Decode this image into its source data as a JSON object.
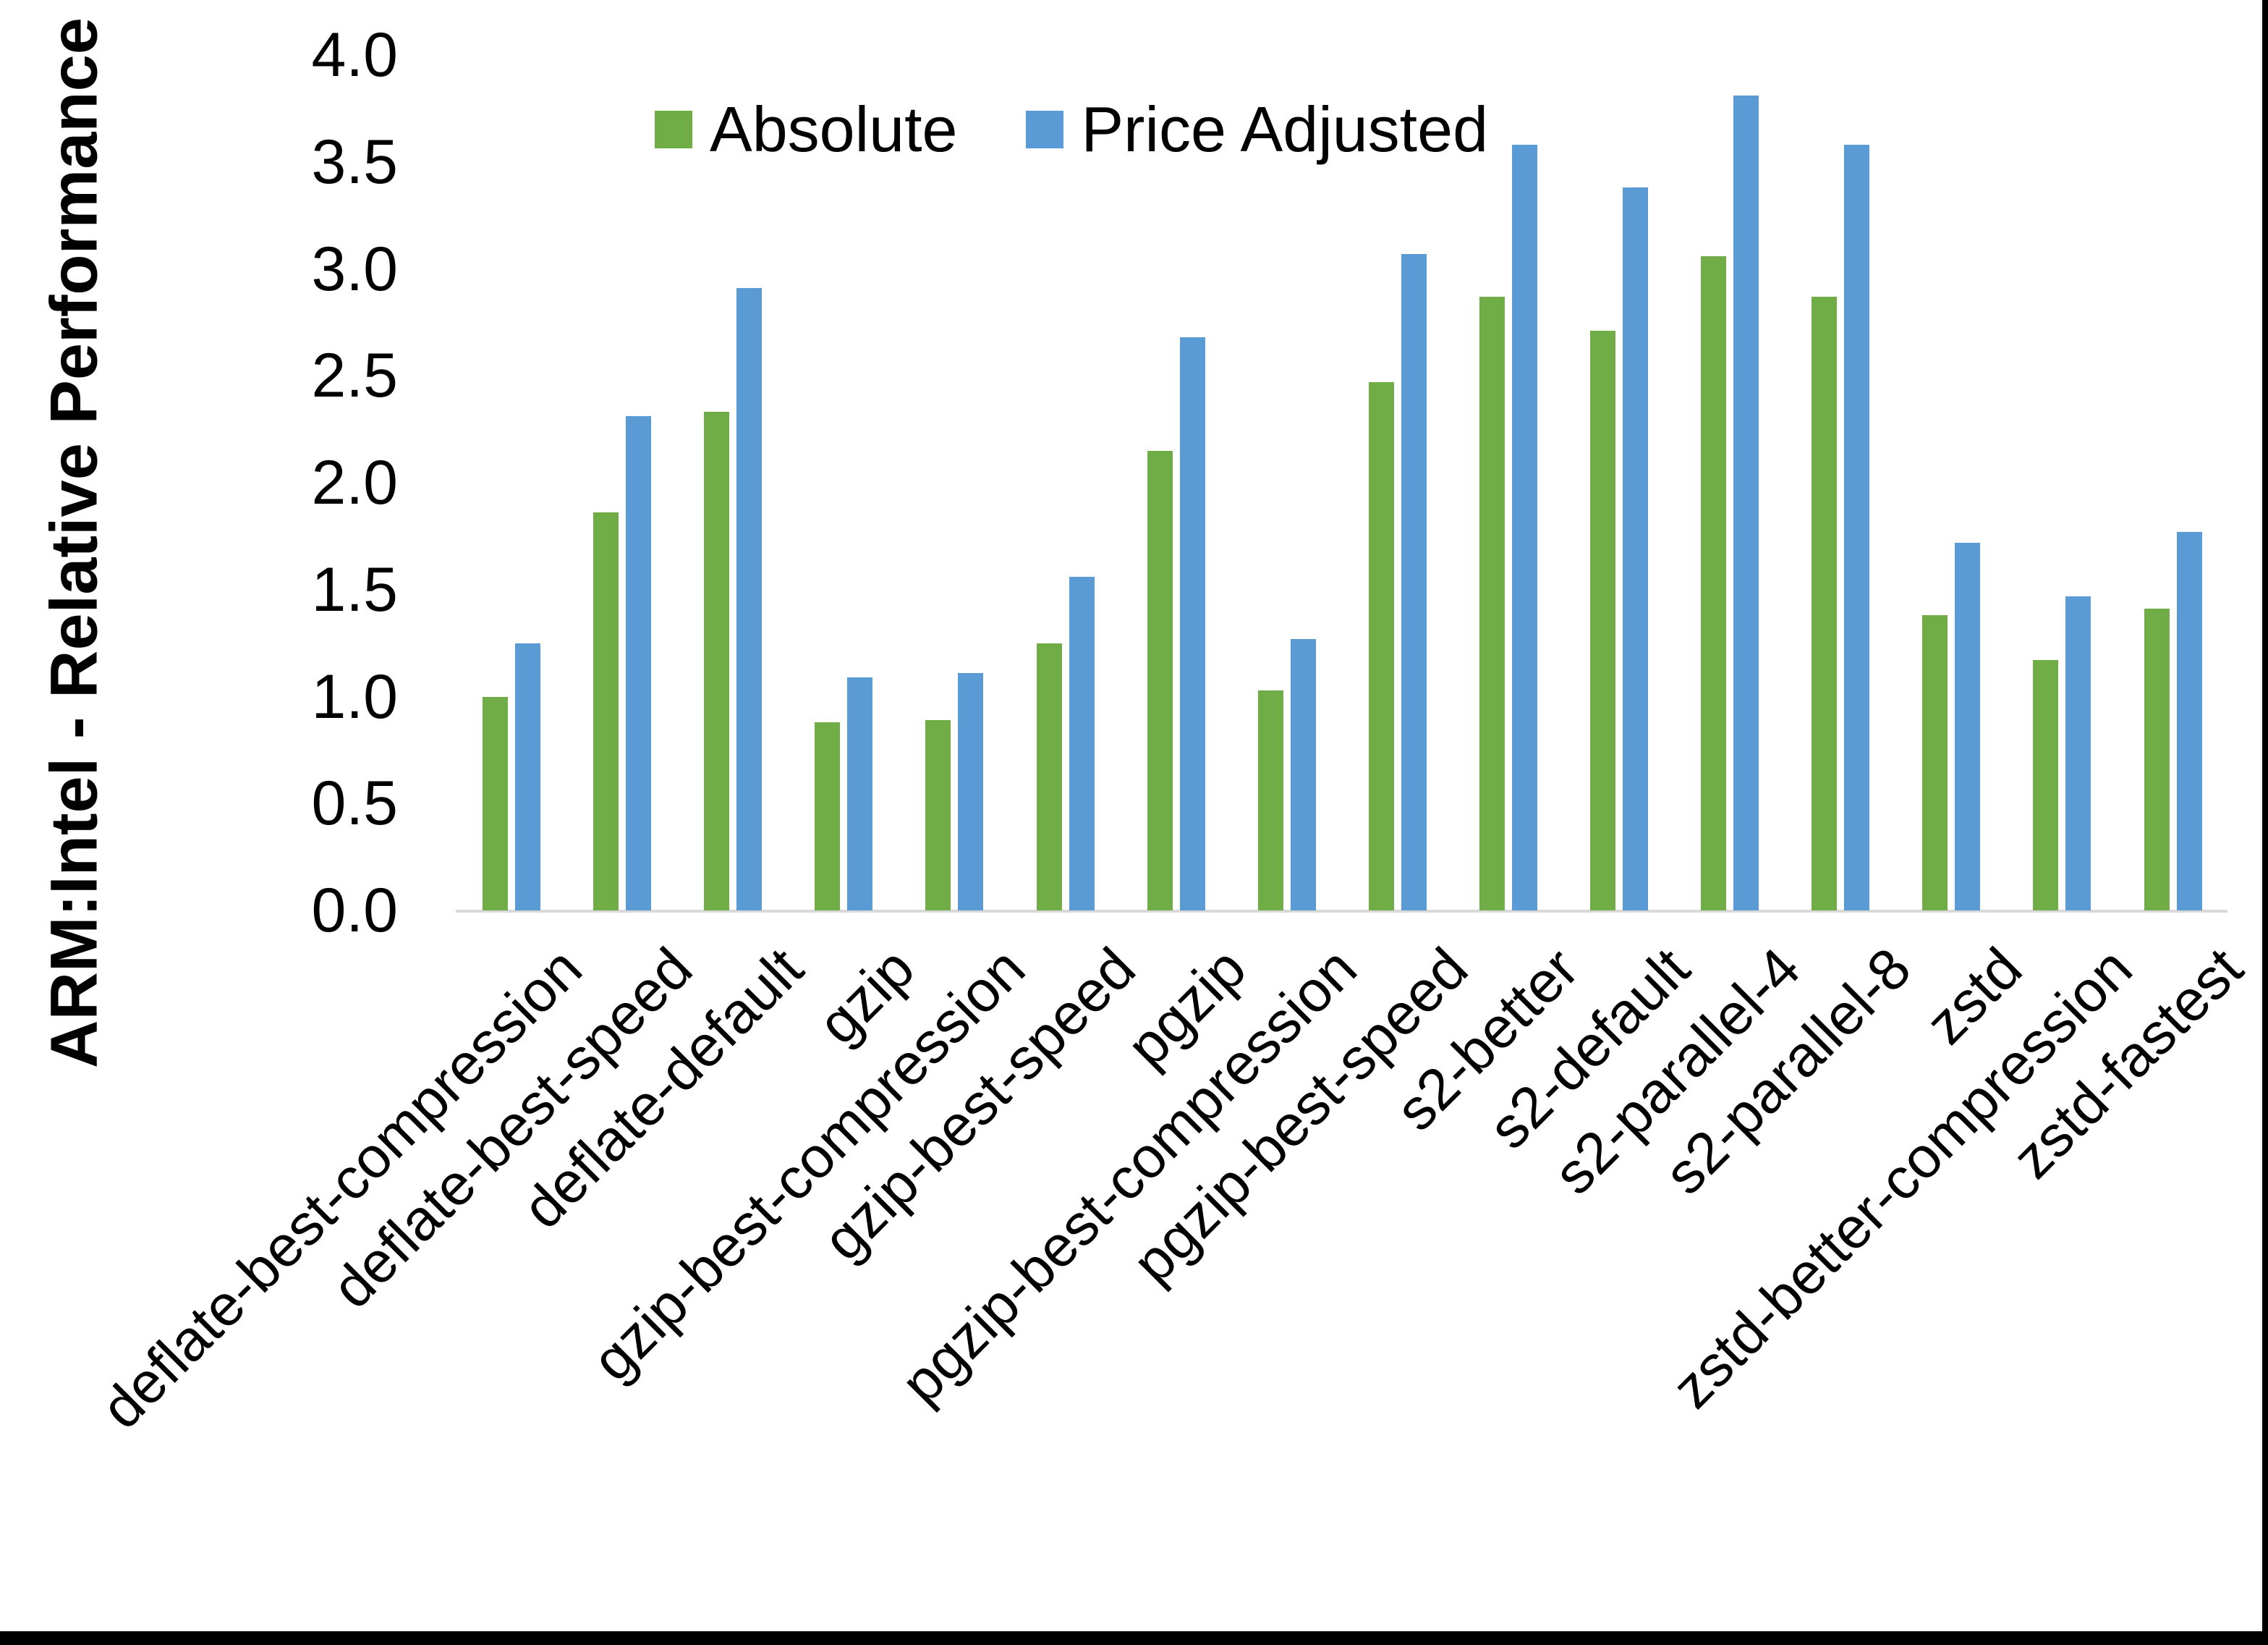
{
  "chart_data": {
    "type": "bar",
    "title": "",
    "ylabel": "ARM:Intel - Relative Performance",
    "xlabel": "",
    "ylim": [
      0.0,
      4.0
    ],
    "grid": "off",
    "legend_position": "top-center",
    "y_ticks": [
      "0.0",
      "0.5",
      "1.0",
      "1.5",
      "2.0",
      "2.5",
      "3.0",
      "3.5",
      "4.0"
    ],
    "categories": [
      "deflate-best-compression",
      "deflate-best-speed",
      "deflate-default",
      "gzip",
      "gzip-best-compression",
      "gzip-best-speed",
      "pgzip",
      "pgzip-best-compression",
      "pgzip-best-speed",
      "s2-better",
      "s2-default",
      "s2-parallel-4",
      "s2-parallel-8",
      "zstd",
      "zstd-better-compression",
      "zstd-fastest"
    ],
    "series": [
      {
        "name": "Absolute",
        "color": "#70AD47",
        "values": [
          1.0,
          1.86,
          2.33,
          0.88,
          0.89,
          1.25,
          2.15,
          1.03,
          2.47,
          2.87,
          2.71,
          3.06,
          2.87,
          1.38,
          1.17,
          1.41
        ]
      },
      {
        "name": "Price Adjusted",
        "color": "#5B9BD5",
        "values": [
          1.25,
          2.31,
          2.91,
          1.09,
          1.11,
          1.56,
          2.68,
          1.27,
          3.07,
          3.58,
          3.38,
          3.81,
          3.58,
          1.72,
          1.47,
          1.77
        ]
      }
    ]
  },
  "colors": {
    "background": "#FFFFFF",
    "axis_line": "#D9D9D9",
    "text": "#000000",
    "frame": "#000000"
  }
}
